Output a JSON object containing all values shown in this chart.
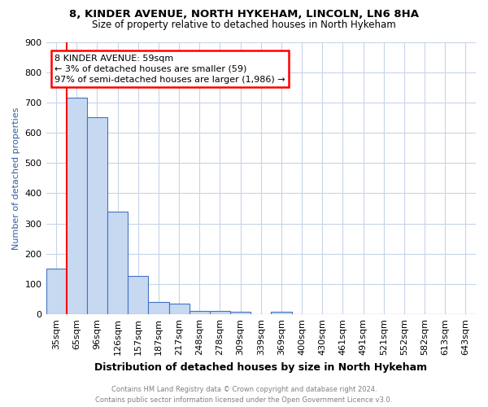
{
  "title": "8, KINDER AVENUE, NORTH HYKEHAM, LINCOLN, LN6 8HA",
  "subtitle": "Size of property relative to detached houses in North Hykeham",
  "xlabel": "Distribution of detached houses by size in North Hykeham",
  "ylabel": "Number of detached properties",
  "footer_line1": "Contains HM Land Registry data © Crown copyright and database right 2024.",
  "footer_line2": "Contains public sector information licensed under the Open Government Licence v3.0.",
  "categories": [
    "35sqm",
    "65sqm",
    "96sqm",
    "126sqm",
    "157sqm",
    "187sqm",
    "217sqm",
    "248sqm",
    "278sqm",
    "309sqm",
    "339sqm",
    "369sqm",
    "400sqm",
    "430sqm",
    "461sqm",
    "491sqm",
    "521sqm",
    "552sqm",
    "582sqm",
    "613sqm",
    "643sqm"
  ],
  "values": [
    150,
    715,
    650,
    340,
    128,
    40,
    35,
    10,
    10,
    8,
    0,
    8,
    0,
    0,
    0,
    0,
    0,
    0,
    0,
    0,
    0
  ],
  "bar_color": "#c6d9f1",
  "bar_edge_color": "#4472c4",
  "red_line_x": 0,
  "annotation_text": "8 KINDER AVENUE: 59sqm\n← 3% of detached houses are smaller (59)\n97% of semi-detached houses are larger (1,986) →",
  "annotation_box_color": "white",
  "annotation_box_edge_color": "red",
  "ylim": [
    0,
    900
  ],
  "yticks": [
    0,
    100,
    200,
    300,
    400,
    500,
    600,
    700,
    800,
    900
  ],
  "background_color": "white",
  "grid_color": "#c8d4e8",
  "ylabel_color": "#3060a0"
}
